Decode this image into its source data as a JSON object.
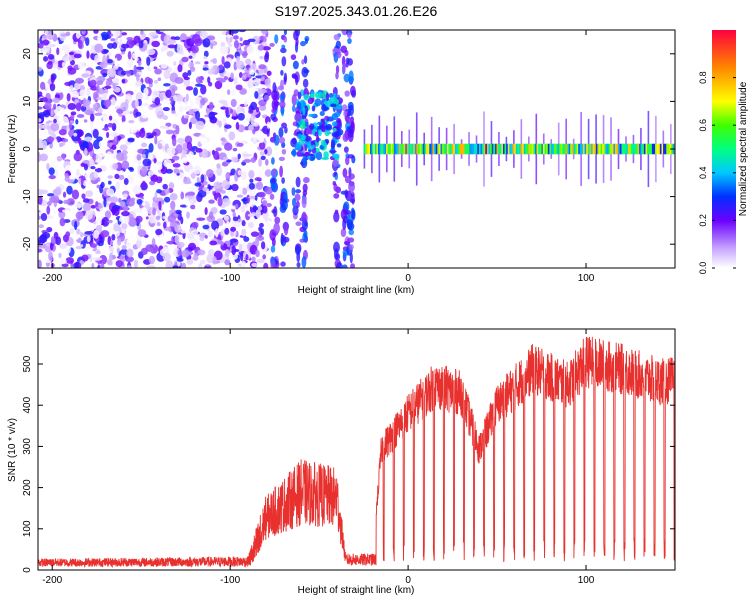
{
  "title": "S197.2025.343.01.26.E26",
  "chart_data": [
    {
      "type": "heatmap",
      "name": "spectrogram",
      "xlabel": "Height of straight line (km)",
      "ylabel": "Frequency (Hz)",
      "xlim": [
        -208,
        150
      ],
      "ylim": [
        -25,
        25
      ],
      "xticks": [
        -200,
        -100,
        0,
        100
      ],
      "yticks": [
        -20,
        -10,
        0,
        10,
        20
      ],
      "colorbar": {
        "label": "Normalized spectral amplitude",
        "range": [
          0,
          1
        ],
        "ticks": [
          "0.0",
          "0.2",
          "0.4",
          "0.6",
          "0.8"
        ],
        "tick_values": [
          0,
          0.2,
          0.4,
          0.6,
          0.8
        ]
      },
      "regions": [
        {
          "x_start": -208,
          "x_end": -78,
          "description": "broadband noise",
          "level": 0.12
        },
        {
          "x_start": -75,
          "x_end": -30,
          "description": "bursts",
          "level": 0.2
        },
        {
          "x_start": -25,
          "x_end": 150,
          "description": "narrow line near 0 Hz",
          "freq": 0,
          "level": 0.6
        }
      ]
    },
    {
      "type": "line",
      "name": "snr",
      "xlabel": "Height of straight line (km)",
      "ylabel": "SNR (10 * v/v)",
      "xlim": [
        -208,
        150
      ],
      "ylim": [
        0,
        585
      ],
      "xticks": [
        -200,
        -100,
        0,
        100
      ],
      "yticks": [
        0,
        100,
        200,
        300,
        400,
        500
      ],
      "color": "#e8302e",
      "envelope": [
        {
          "x": -208,
          "y": 20
        },
        {
          "x": -150,
          "y": 22
        },
        {
          "x": -90,
          "y": 25
        },
        {
          "x": -80,
          "y": 180
        },
        {
          "x": -60,
          "y": 270
        },
        {
          "x": -40,
          "y": 250
        },
        {
          "x": -35,
          "y": 30
        },
        {
          "x": -20,
          "y": 30
        },
        {
          "x": -15,
          "y": 300
        },
        {
          "x": 0,
          "y": 390
        },
        {
          "x": 15,
          "y": 460
        },
        {
          "x": 30,
          "y": 440
        },
        {
          "x": 40,
          "y": 300
        },
        {
          "x": 50,
          "y": 410
        },
        {
          "x": 70,
          "y": 500
        },
        {
          "x": 90,
          "y": 460
        },
        {
          "x": 100,
          "y": 520
        },
        {
          "x": 120,
          "y": 500
        },
        {
          "x": 140,
          "y": 470
        },
        {
          "x": 150,
          "y": 470
        }
      ]
    }
  ]
}
